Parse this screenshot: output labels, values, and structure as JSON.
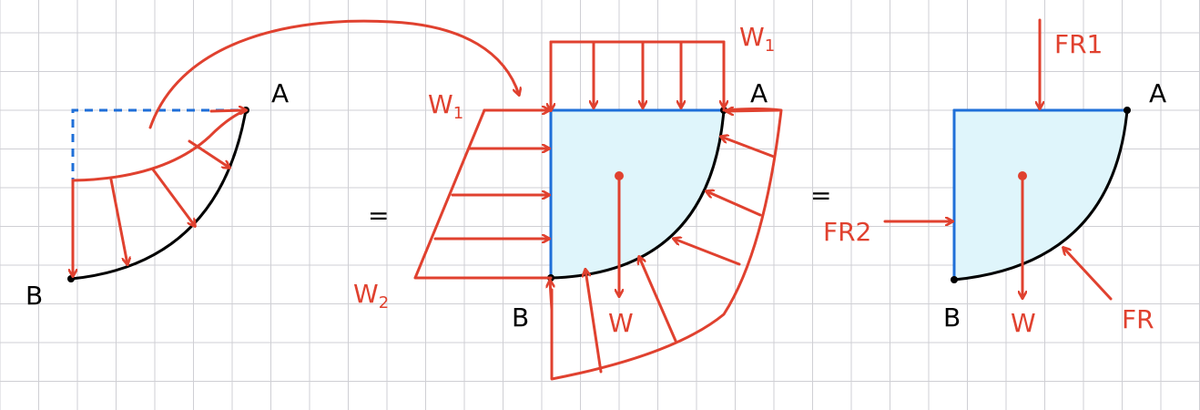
{
  "colors": {
    "grid": "#cfcfd4",
    "force_arrows": "#e0412f",
    "curved_surface": "#000000",
    "boundary": "#1f6fd8",
    "fluid_block": "#dff5fb"
  },
  "labels": {
    "panel1": {
      "point_a": "A",
      "point_b": "B"
    },
    "panel2": {
      "point_a": "A",
      "point_b": "B",
      "pressure_top_main": "W",
      "pressure_top_sub": "1",
      "pressure_left_top_main": "W",
      "pressure_left_top_sub": "1",
      "pressure_left_bottom_main": "W",
      "pressure_left_bottom_sub": "2",
      "weight": "W"
    },
    "panel3": {
      "point_a": "A",
      "point_b": "B",
      "force_vertical": "FR1",
      "force_horizontal": "FR2",
      "force_resultant": "FR",
      "weight": "W"
    },
    "equals_1": "=",
    "equals_2": "="
  }
}
